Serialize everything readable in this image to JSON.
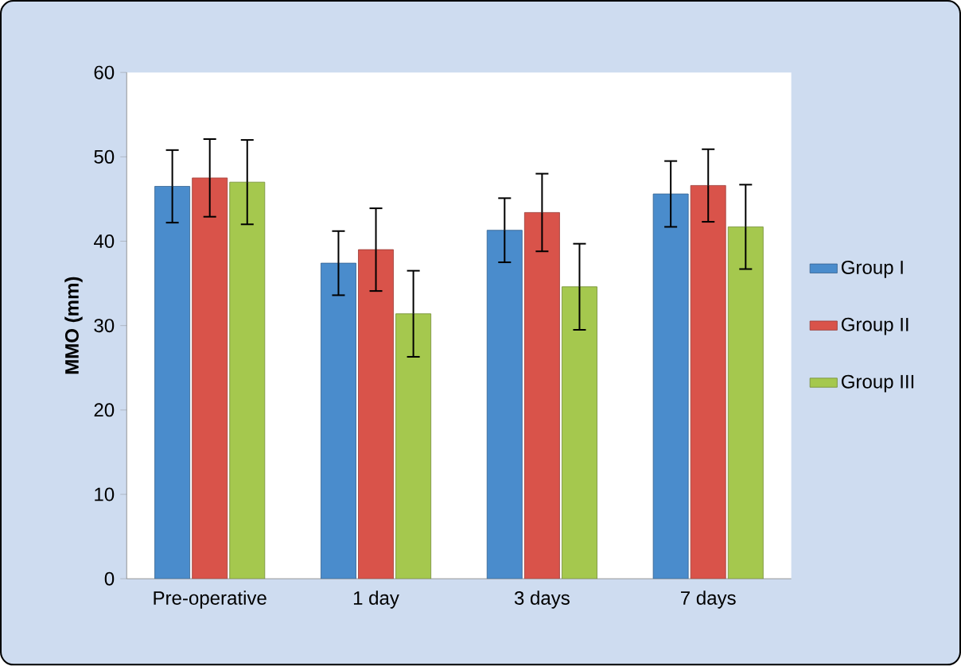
{
  "chart_data": {
    "type": "bar",
    "ylabel": "MMO (mm)",
    "categories": [
      "Pre-operative",
      "1 day",
      "3 days",
      "7 days"
    ],
    "series": [
      {
        "name": "Group I",
        "color": "#4a8ccc",
        "values": [
          46.5,
          37.4,
          41.3,
          45.6
        ],
        "errors": [
          4.3,
          3.8,
          3.8,
          3.9
        ]
      },
      {
        "name": "Group II",
        "color": "#d9534a",
        "values": [
          47.5,
          39.0,
          43.4,
          46.6
        ],
        "errors": [
          4.6,
          4.9,
          4.6,
          4.3
        ]
      },
      {
        "name": "Group III",
        "color": "#a5c84e",
        "values": [
          47.0,
          31.4,
          34.6,
          41.7
        ],
        "errors": [
          5.0,
          5.1,
          5.1,
          5.0
        ]
      }
    ],
    "ylim": [
      0,
      60
    ],
    "yticks": [
      0,
      10,
      20,
      30,
      40,
      50,
      60
    ],
    "grid": false,
    "legend": "right"
  }
}
